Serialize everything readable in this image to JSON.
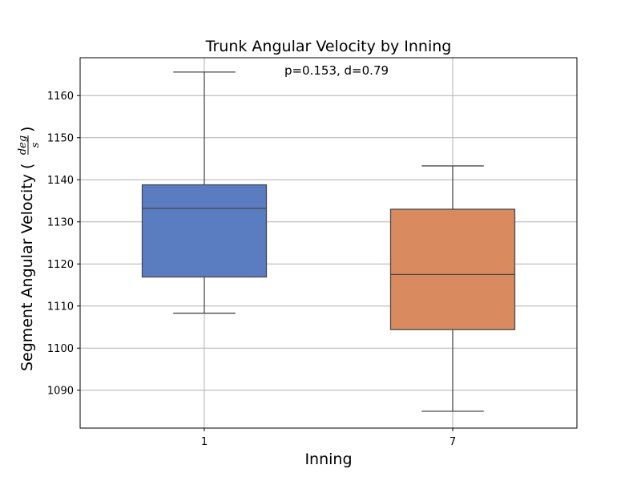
{
  "chart_data": {
    "type": "box",
    "title": "Trunk Angular Velocity by Inning",
    "annotation": "p=0.153, d=0.79",
    "xlabel": "Inning",
    "ylabel": {
      "prefix": "Segment Angular Velocity (",
      "unit_numerator": "deg",
      "unit_denominator": "s",
      "suffix": ")"
    },
    "categories": [
      "1",
      "7"
    ],
    "ylim": [
      1081,
      1169
    ],
    "yticks": [
      1090,
      1100,
      1110,
      1120,
      1130,
      1140,
      1150,
      1160
    ],
    "grid": true,
    "boxes": [
      {
        "category": "1",
        "whisker_low": 1108.3,
        "q1": 1116.9,
        "median": 1133.2,
        "q3": 1138.8,
        "whisker_high": 1165.6,
        "color": "#5a7dc2"
      },
      {
        "category": "7",
        "whisker_low": 1085.0,
        "q1": 1104.4,
        "median": 1117.5,
        "q3": 1133.0,
        "whisker_high": 1143.3,
        "color": "#d98b5f"
      }
    ]
  }
}
